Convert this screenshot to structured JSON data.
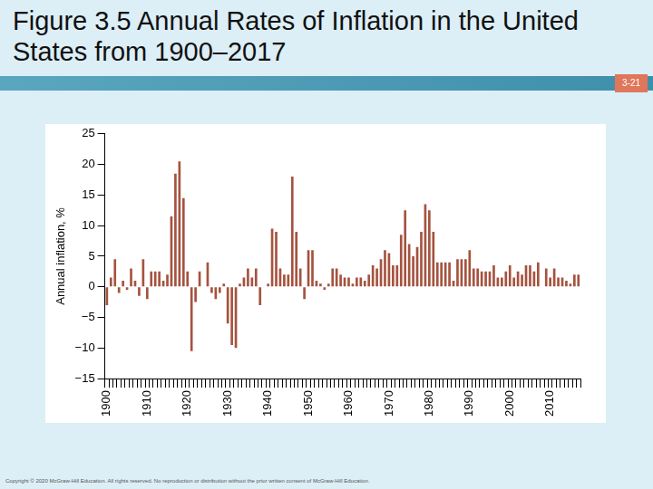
{
  "chart_data": {
    "type": "bar",
    "title": "Figure 3.5 Annual Rates of Inflation in the United States from 1900–2017",
    "ylabel": "Annual inflation, %",
    "categories": [
      "1900",
      null,
      null,
      null,
      null,
      null,
      null,
      null,
      null,
      null,
      "1910",
      null,
      null,
      null,
      null,
      null,
      null,
      null,
      null,
      null,
      "1920",
      null,
      null,
      null,
      null,
      null,
      null,
      null,
      null,
      null,
      "1930",
      null,
      null,
      null,
      null,
      null,
      null,
      null,
      null,
      null,
      "1940",
      null,
      null,
      null,
      null,
      null,
      null,
      null,
      null,
      null,
      "1950",
      null,
      null,
      null,
      null,
      null,
      null,
      null,
      null,
      null,
      "1960",
      null,
      null,
      null,
      null,
      null,
      null,
      null,
      null,
      null,
      "1970",
      null,
      null,
      null,
      null,
      null,
      null,
      null,
      null,
      null,
      "1980",
      null,
      null,
      null,
      null,
      null,
      null,
      null,
      null,
      null,
      "1990",
      null,
      null,
      null,
      null,
      null,
      null,
      null,
      null,
      null,
      "2000",
      null,
      null,
      null,
      null,
      null,
      null,
      null,
      null,
      null,
      "2010",
      null,
      null,
      null,
      null,
      null,
      null,
      null
    ],
    "values": [
      -3,
      1.5,
      4.5,
      -1,
      1,
      -0.5,
      3,
      1,
      -1.5,
      4.5,
      -2,
      2.5,
      2.5,
      2.5,
      1,
      2,
      11.5,
      18.5,
      20.5,
      14.5,
      2.5,
      -10.5,
      -2.5,
      2.5,
      0,
      4,
      -1,
      -2,
      -1,
      0.5,
      -6,
      -9.5,
      -10,
      0.5,
      1.5,
      3,
      1.5,
      3,
      -3,
      0,
      0.5,
      9.5,
      9,
      3,
      2,
      2,
      18,
      9,
      3,
      -2,
      6,
      6,
      1,
      0.5,
      -0.5,
      0.5,
      3,
      3,
      2,
      1.5,
      1.5,
      0.5,
      1.5,
      1.5,
      1,
      2,
      3.5,
      3,
      4.5,
      6,
      5.5,
      3.5,
      3.5,
      8.5,
      12.5,
      7,
      5,
      6.5,
      9,
      13.5,
      12.5,
      9,
      4,
      4,
      4,
      4,
      1,
      4.5,
      4.5,
      4.5,
      6,
      3,
      3,
      2.5,
      2.5,
      2.5,
      3.5,
      1.5,
      1.5,
      2.5,
      3.5,
      1.5,
      2.5,
      2,
      3.5,
      3.5,
      2.5,
      4,
      0,
      3,
      1.5,
      3,
      1.5,
      1.5,
      1,
      0.5,
      2,
      2
    ],
    "color": "#a5533f",
    "ylim": [
      -15,
      25
    ],
    "yticks": [
      {
        "value": -15,
        "label": "−15"
      },
      {
        "value": -10,
        "label": "−10"
      },
      {
        "value": -5,
        "label": "−5"
      },
      0,
      5,
      10,
      15,
      20,
      25
    ],
    "grid": false
  },
  "slide": {
    "number": "3-21",
    "footer": "Copyright © 2020 McGraw-Hill Education. All rights reserved. No reproduction or distribution without the prior written consent of McGraw-Hill Education."
  }
}
